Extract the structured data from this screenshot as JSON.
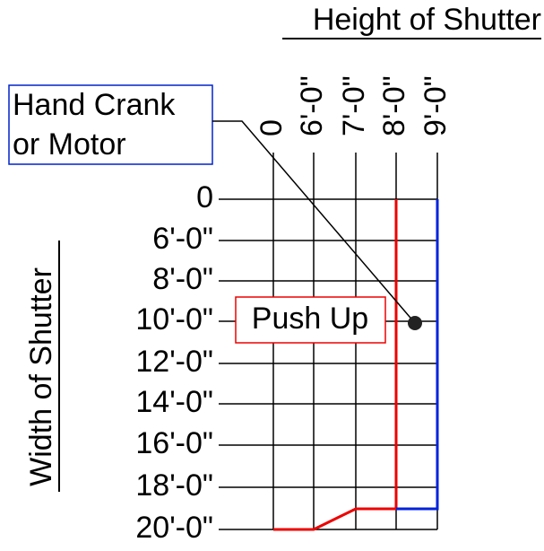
{
  "header": {
    "title": "Height of Shutter"
  },
  "side": {
    "title": "Width of Shutter"
  },
  "columns": [
    "0",
    "6'-0\"",
    "7'-0\"",
    "8'-0\"",
    "9'-0\""
  ],
  "rows": [
    "0",
    "6'-0\"",
    "8'-0\"",
    "10'-0\"",
    "12'-0\"",
    "14'-0\"",
    "16'-0\"",
    "18'-0\"",
    "20'-0\""
  ],
  "annotations": {
    "hand_crank": [
      "Hand Crank",
      "or Motor"
    ],
    "push_up": "Push Up"
  }
}
